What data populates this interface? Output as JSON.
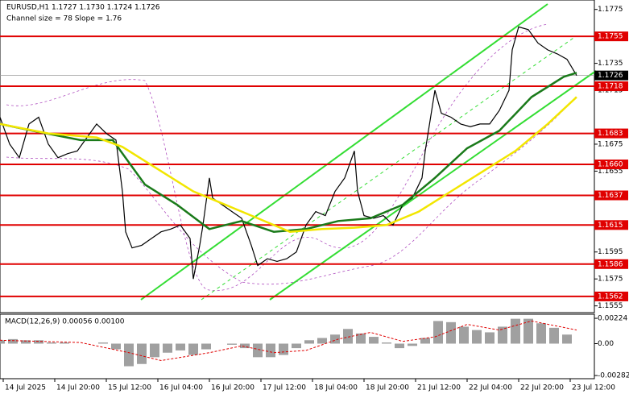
{
  "chart_data": [
    {
      "type": "line",
      "title": "EURUSD,H1  1.1727 1.1730 1.1724 1.1726",
      "subtitle": "Channel size = 78 Slope = 1.76",
      "xlim": [
        0,
        184.5
      ],
      "xticks": [
        {
          "value": 1,
          "label": "14 Jul 2025"
        },
        {
          "value": 17,
          "label": "14 Jul 20:00"
        },
        {
          "value": 33,
          "label": "15 Jul 12:00"
        },
        {
          "value": 49,
          "label": "16 Jul 04:00"
        },
        {
          "value": 65,
          "label": "16 Jul 20:00"
        },
        {
          "value": 81,
          "label": "17 Jul 12:00"
        },
        {
          "value": 97,
          "label": "18 Jul 04:00"
        },
        {
          "value": 113,
          "label": "18 Jul 20:00"
        },
        {
          "value": 129,
          "label": "21 Jul 12:00"
        },
        {
          "value": 145,
          "label": "22 Jul 04:00"
        },
        {
          "value": 161,
          "label": "22 Jul 20:00"
        },
        {
          "value": 177,
          "label": "23 Jul 12:00"
        }
      ],
      "ylim": [
        1.155,
        1.1782
      ],
      "yticks": [
        1.1555,
        1.1575,
        1.1595,
        1.1655,
        1.1675,
        1.1715,
        1.1735,
        1.1775
      ],
      "levels": [
        1.1755,
        1.1718,
        1.1683,
        {
          "value": 1.166,
          "label": "1.1660"
        },
        1.1637,
        1.1615,
        1.1586,
        1.1562
      ],
      "level_color": "#e00000",
      "last_price": 1.1726,
      "series": [
        {
          "color": "#000000",
          "width": 1.2,
          "x": [
            0,
            3,
            6,
            9,
            12,
            15,
            18,
            21,
            24,
            27,
            30,
            33,
            36,
            38,
            39,
            41,
            44,
            47,
            50,
            53,
            56,
            59,
            60,
            62,
            63,
            65,
            66,
            69,
            72,
            75,
            78,
            80,
            83,
            86,
            89,
            92,
            95,
            98,
            101,
            104,
            107,
            110,
            111,
            113,
            116,
            119,
            122,
            125,
            128,
            131,
            132,
            134,
            135,
            137,
            140,
            143,
            146,
            149,
            152,
            155,
            158,
            159,
            161,
            164,
            167,
            170,
            173,
            176,
            179
          ],
          "values": [
            1.1695,
            1.1675,
            1.1665,
            1.169,
            1.1695,
            1.1675,
            1.1665,
            1.1668,
            1.167,
            1.168,
            1.169,
            1.1683,
            1.1678,
            1.164,
            1.161,
            1.1598,
            1.16,
            1.1605,
            1.161,
            1.1612,
            1.1615,
            1.1605,
            1.1575,
            1.16,
            1.1615,
            1.165,
            1.1635,
            1.163,
            1.1625,
            1.162,
            1.16,
            1.1585,
            1.159,
            1.1588,
            1.159,
            1.1595,
            1.1615,
            1.1625,
            1.1622,
            1.164,
            1.165,
            1.167,
            1.164,
            1.1622,
            1.162,
            1.1622,
            1.1615,
            1.163,
            1.1635,
            1.165,
            1.167,
            1.17,
            1.1715,
            1.1698,
            1.1695,
            1.169,
            1.1688,
            1.169,
            1.169,
            1.17,
            1.1715,
            1.1745,
            1.1762,
            1.176,
            1.175,
            1.1745,
            1.1742,
            1.1738,
            1.1726
          ]
        },
        {
          "color": "#1a7a1a",
          "width": 2.5,
          "x": [
            0,
            10,
            25,
            35,
            45,
            55,
            65,
            75,
            85,
            95,
            105,
            115,
            125,
            135,
            145,
            155,
            165,
            175,
            179
          ],
          "values": [
            1.169,
            1.1685,
            1.1678,
            1.1678,
            1.1645,
            1.163,
            1.1612,
            1.1618,
            1.161,
            1.1612,
            1.1618,
            1.162,
            1.163,
            1.165,
            1.1672,
            1.1685,
            1.171,
            1.1725,
            1.1728
          ]
        },
        {
          "color": "#f2e600",
          "width": 2.5,
          "x": [
            0,
            15,
            30,
            38,
            50,
            60,
            70,
            80,
            90,
            100,
            110,
            120,
            130,
            140,
            150,
            160,
            170,
            179
          ],
          "values": [
            1.169,
            1.1683,
            1.168,
            1.1673,
            1.1655,
            1.164,
            1.163,
            1.162,
            1.161,
            1.1612,
            1.1613,
            1.1615,
            1.1625,
            1.164,
            1.1655,
            1.167,
            1.169,
            1.171
          ]
        }
      ]
    },
    {
      "type": "bar",
      "title": "MACD(12,26,9) 0.00056 0.00100",
      "xlim": [
        0,
        184.5
      ],
      "ylim": [
        -0.0031,
        0.0026
      ],
      "yticks": [
        0.00224,
        {
          "value": 0,
          "label": "0.00"
        },
        -0.00282
      ],
      "color": "#a0a0a0",
      "x": [
        0,
        4,
        8,
        12,
        16,
        20,
        24,
        28,
        32,
        36,
        40,
        44,
        48,
        52,
        56,
        60,
        64,
        68,
        72,
        76,
        80,
        84,
        88,
        92,
        96,
        100,
        104,
        108,
        112,
        116,
        120,
        124,
        128,
        132,
        136,
        140,
        144,
        148,
        152,
        156,
        160,
        164,
        168,
        172,
        176
      ],
      "values": [
        0.0003,
        0.0004,
        0.0003,
        0.0003,
        0.0001,
        0.0001,
        0.0,
        0.0,
        0.0001,
        -0.0005,
        -0.002,
        -0.0018,
        -0.0012,
        -0.0008,
        -0.0006,
        -0.001,
        -0.0005,
        0.0,
        -0.0001,
        -0.0004,
        -0.0012,
        -0.0012,
        -0.001,
        -0.0004,
        0.0003,
        0.0005,
        0.0008,
        0.0013,
        0.0009,
        0.0006,
        0.0001,
        -0.0004,
        -0.0002,
        0.0005,
        0.002,
        0.0019,
        0.0015,
        0.0012,
        0.001,
        0.0015,
        0.0022,
        0.0022,
        0.0018,
        0.0014,
        0.0008
      ],
      "signal": {
        "color": "#e00000",
        "x": [
          0,
          25,
          40,
          50,
          65,
          75,
          85,
          95,
          105,
          115,
          125,
          135,
          145,
          155,
          165,
          179
        ],
        "values": [
          0.0003,
          0.0001,
          -0.0008,
          -0.0015,
          -0.0008,
          -0.0002,
          -0.0008,
          -0.0006,
          0.0004,
          0.001,
          0.0002,
          0.0006,
          0.0017,
          0.0012,
          0.002,
          0.0012
        ]
      }
    }
  ]
}
